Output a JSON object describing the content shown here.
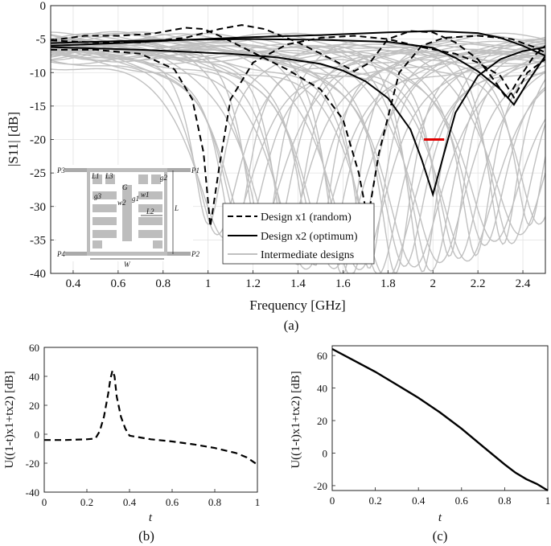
{
  "figure": {
    "panel_a_caption": "(a)",
    "panel_b_caption": "(b)",
    "panel_c_caption": "(c)"
  },
  "chart_data": [
    {
      "id": "a",
      "type": "line",
      "xlabel": "Frequency [GHz]",
      "ylabel": "|S11| [dB]",
      "xlim": [
        0.3,
        2.5
      ],
      "ylim": [
        -40,
        0
      ],
      "xticks": [
        0.4,
        0.6,
        0.8,
        1.0,
        1.2,
        1.4,
        1.6,
        1.8,
        2.0,
        2.2,
        2.4
      ],
      "xtick_labels": [
        "0.4",
        "0.6",
        "0.8",
        "1",
        "1.2",
        "1.4",
        "1.6",
        "1.8",
        "2",
        "2.2",
        "2.4"
      ],
      "yticks": [
        0,
        -5,
        -10,
        -15,
        -20,
        -25,
        -30,
        -35,
        -40
      ],
      "ytick_labels": [
        "0",
        "-5",
        "-10",
        "-15",
        "-20",
        "-25",
        "-30",
        "-35",
        "-40"
      ],
      "grid": true,
      "legend_position": "bottom-right",
      "series": [
        {
          "name": "Design x1 (random)",
          "style": "dashed",
          "color": "#000000",
          "curves": [
            [
              [
                0.3,
                -6.6
              ],
              [
                0.5,
                -6.6
              ],
              [
                0.7,
                -7.2
              ],
              [
                0.85,
                -9.5
              ],
              [
                0.93,
                -14
              ],
              [
                0.98,
                -22
              ],
              [
                1.01,
                -33
              ],
              [
                1.05,
                -24
              ],
              [
                1.1,
                -14
              ],
              [
                1.2,
                -8.5
              ],
              [
                1.35,
                -5.8
              ],
              [
                1.5,
                -4.8
              ],
              [
                1.65,
                -4.5
              ],
              [
                1.8,
                -5
              ],
              [
                1.95,
                -6.2
              ],
              [
                2.1,
                -7.2
              ],
              [
                2.2,
                -8.5
              ],
              [
                2.3,
                -10.5
              ],
              [
                2.36,
                -13.7
              ],
              [
                2.42,
                -10
              ],
              [
                2.5,
                -8
              ]
            ],
            [
              [
                0.3,
                -5.2
              ],
              [
                0.45,
                -4.5
              ],
              [
                0.6,
                -4.5
              ],
              [
                0.75,
                -4.2
              ],
              [
                0.9,
                -3.3
              ],
              [
                0.98,
                -3.5
              ],
              [
                1.05,
                -4.5
              ],
              [
                1.2,
                -7
              ],
              [
                1.35,
                -9.5
              ],
              [
                1.5,
                -12.5
              ],
              [
                1.6,
                -17
              ],
              [
                1.67,
                -25
              ],
              [
                1.71,
                -32
              ],
              [
                1.76,
                -22
              ],
              [
                1.85,
                -10
              ],
              [
                1.95,
                -6
              ],
              [
                2.05,
                -4.8
              ],
              [
                2.2,
                -4.5
              ],
              [
                2.35,
                -5
              ],
              [
                2.45,
                -6.2
              ],
              [
                2.5,
                -7
              ]
            ],
            [
              [
                0.3,
                -5.2
              ],
              [
                0.5,
                -5.5
              ],
              [
                0.7,
                -5.5
              ],
              [
                0.9,
                -4.8
              ],
              [
                1.05,
                -3.5
              ],
              [
                1.15,
                -2.9
              ],
              [
                1.25,
                -3.5
              ],
              [
                1.4,
                -5.5
              ],
              [
                1.55,
                -8
              ],
              [
                1.65,
                -9.8
              ],
              [
                1.72,
                -8.5
              ],
              [
                1.8,
                -5
              ],
              [
                1.9,
                -3.8
              ],
              [
                2.0,
                -4
              ],
              [
                2.1,
                -5.5
              ],
              [
                2.2,
                -8
              ],
              [
                2.28,
                -11.5
              ],
              [
                2.33,
                -14
              ],
              [
                2.38,
                -11
              ],
              [
                2.45,
                -7.5
              ],
              [
                2.5,
                -6
              ]
            ]
          ]
        },
        {
          "name": "Design x2 (optimum)",
          "style": "solid",
          "color": "#000000",
          "curves": [
            [
              [
                0.3,
                -6.2
              ],
              [
                0.5,
                -6.4
              ],
              [
                0.7,
                -6.6
              ],
              [
                0.9,
                -6.9
              ],
              [
                1.1,
                -7.2
              ],
              [
                1.3,
                -7.7
              ],
              [
                1.5,
                -8.7
              ],
              [
                1.6,
                -9.7
              ],
              [
                1.7,
                -11.3
              ],
              [
                1.8,
                -13.8
              ],
              [
                1.9,
                -18.5
              ],
              [
                1.95,
                -23
              ],
              [
                2.0,
                -28.2
              ],
              [
                2.05,
                -22
              ],
              [
                2.1,
                -16
              ],
              [
                2.2,
                -10.5
              ],
              [
                2.3,
                -8
              ],
              [
                2.4,
                -6.8
              ],
              [
                2.5,
                -6.2
              ]
            ],
            [
              [
                0.3,
                -5.6
              ],
              [
                0.6,
                -5.3
              ],
              [
                0.9,
                -5.1
              ],
              [
                1.2,
                -5.0
              ],
              [
                1.5,
                -5.1
              ],
              [
                1.8,
                -5.4
              ],
              [
                2.0,
                -6.3
              ],
              [
                2.1,
                -7.8
              ],
              [
                2.2,
                -9.8
              ],
              [
                2.3,
                -12.5
              ],
              [
                2.36,
                -14.8
              ],
              [
                2.42,
                -11.5
              ],
              [
                2.5,
                -7.5
              ]
            ],
            [
              [
                0.3,
                -6.0
              ],
              [
                0.6,
                -5.6
              ],
              [
                0.9,
                -5.1
              ],
              [
                1.2,
                -4.7
              ],
              [
                1.5,
                -4.4
              ],
              [
                1.8,
                -4.0
              ],
              [
                2.0,
                -3.8
              ],
              [
                2.2,
                -4.1
              ],
              [
                2.3,
                -4.8
              ],
              [
                2.4,
                -6.0
              ],
              [
                2.5,
                -7.5
              ]
            ]
          ]
        },
        {
          "name": "Intermediate designs",
          "style": "solid",
          "color": "#c0c0c0",
          "family": {
            "count": 38,
            "min_start_ghz": 1.0,
            "min_end_ghz": 2.47,
            "min_depth_db": [
              -33,
              -40
            ],
            "baseline_db": -6
          }
        }
      ],
      "marker": {
        "label": "target band",
        "x": [
          1.96,
          2.05
        ],
        "y": -20,
        "color": "#e00000"
      },
      "inset_labels": [
        "P3",
        "P1",
        "P4",
        "P2",
        "L",
        "W",
        "L1",
        "w1",
        "g1",
        "g2",
        "g3",
        "w2",
        "G",
        "L2",
        "L3"
      ]
    },
    {
      "id": "b",
      "type": "line",
      "xlabel": "t",
      "ylabel": "U((1-t)x1+tx2) [dB]",
      "xlim": [
        0,
        1
      ],
      "ylim": [
        -40,
        60
      ],
      "xticks": [
        0,
        0.2,
        0.4,
        0.6,
        0.8,
        1
      ],
      "xtick_labels": [
        "0",
        "0.2",
        "0.4",
        "0.6",
        "0.8",
        "1"
      ],
      "yticks": [
        60,
        40,
        20,
        0,
        -20,
        -40
      ],
      "ytick_labels": [
        "60",
        "40",
        "20",
        "0",
        "-20",
        "-40"
      ],
      "grid": false,
      "series": [
        {
          "style": "dashed",
          "color": "#000000",
          "x": [
            0,
            0.1,
            0.2,
            0.24,
            0.26,
            0.28,
            0.3,
            0.31,
            0.32,
            0.33,
            0.34,
            0.36,
            0.38,
            0.4,
            0.5,
            0.6,
            0.7,
            0.8,
            0.9,
            0.95,
            0.98,
            1.0
          ],
          "y": [
            -4,
            -4,
            -3.5,
            -3,
            2,
            12,
            28,
            38,
            44,
            40,
            26,
            12,
            4,
            -1,
            -3.5,
            -5,
            -7,
            -9.5,
            -13,
            -16,
            -19,
            -21
          ]
        }
      ]
    },
    {
      "id": "c",
      "type": "line",
      "xlabel": "t",
      "ylabel": "U((1-t)x1+tx2) [dB]",
      "xlim": [
        0,
        1
      ],
      "ylim": [
        -23,
        66
      ],
      "xticks": [
        0,
        0.2,
        0.4,
        0.6,
        0.8,
        1
      ],
      "xtick_labels": [
        "0",
        "0.2",
        "0.4",
        "0.6",
        "0.8",
        "1"
      ],
      "yticks": [
        60,
        40,
        20,
        0,
        -20
      ],
      "ytick_labels": [
        "60",
        "40",
        "20",
        "0",
        "-20"
      ],
      "grid": false,
      "series": [
        {
          "style": "solid",
          "color": "#000000",
          "x": [
            0,
            0.1,
            0.2,
            0.3,
            0.4,
            0.5,
            0.6,
            0.7,
            0.8,
            0.85,
            0.9,
            0.95,
            1.0
          ],
          "y": [
            64,
            57,
            50,
            42,
            34,
            25,
            15,
            4,
            -7,
            -12,
            -16,
            -19,
            -23
          ]
        }
      ]
    }
  ]
}
